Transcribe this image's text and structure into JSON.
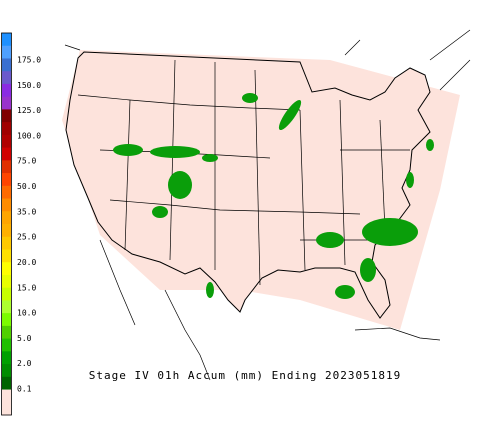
{
  "title": "Stage IV 01h Accum (mm) Ending 2023051819",
  "legend": {
    "labels": [
      "175.0",
      "150.0",
      "125.0",
      "100.0",
      "75.0",
      "50.0",
      "35.0",
      "25.0",
      "20.0",
      "15.0",
      "10.0",
      "5.0",
      "2.0",
      "0.1"
    ]
  }
}
